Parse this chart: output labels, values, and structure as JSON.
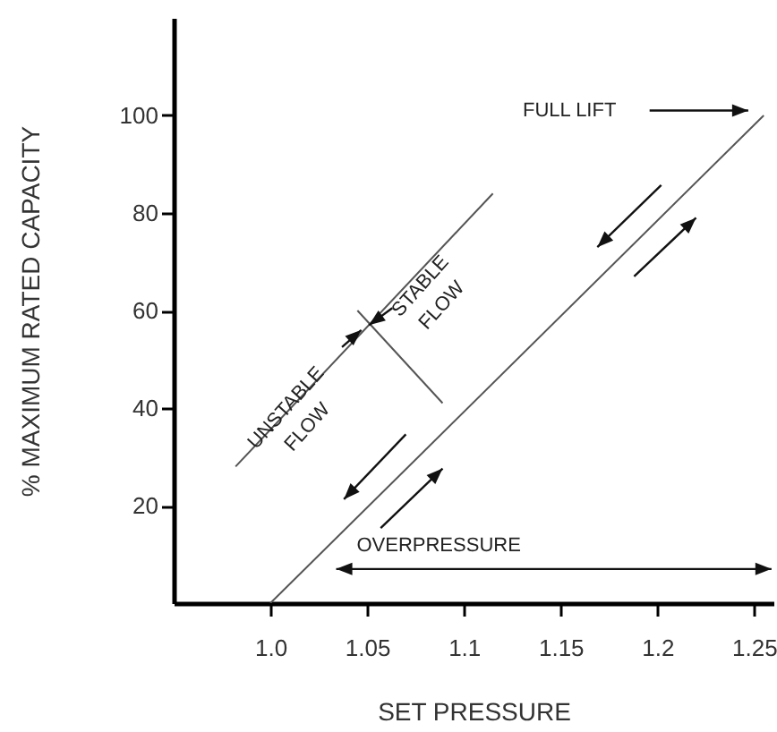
{
  "chart_data": {
    "type": "line",
    "xlabel": "SET PRESSURE",
    "ylabel": "% MAXIMUM RATED CAPACITY",
    "xlim": [
      0.95,
      1.26
    ],
    "ylim": [
      0,
      120
    ],
    "xticks": [
      {
        "value": 1.0,
        "label": "1.0"
      },
      1.05,
      1.1,
      1.15,
      1.2,
      1.25
    ],
    "yticks": [
      20,
      40,
      60,
      80,
      100
    ],
    "grid": false,
    "marker": "none",
    "line_style": "solid",
    "series": [
      {
        "color": "#555555",
        "x": [
          1.0,
          1.255
        ],
        "values": [
          0,
          100
        ]
      },
      {
        "color": "#555555",
        "x": [
          0.982,
          1.115
        ],
        "values": [
          28,
          84
        ]
      },
      {
        "color": "#555555",
        "x": [
          1.045,
          1.089
        ],
        "values": [
          60,
          41
        ]
      }
    ],
    "annotations": [
      "FULL LIFT",
      "STABLE FLOW",
      "UNSTABLE FLOW",
      "OVERPRESSURE"
    ]
  }
}
